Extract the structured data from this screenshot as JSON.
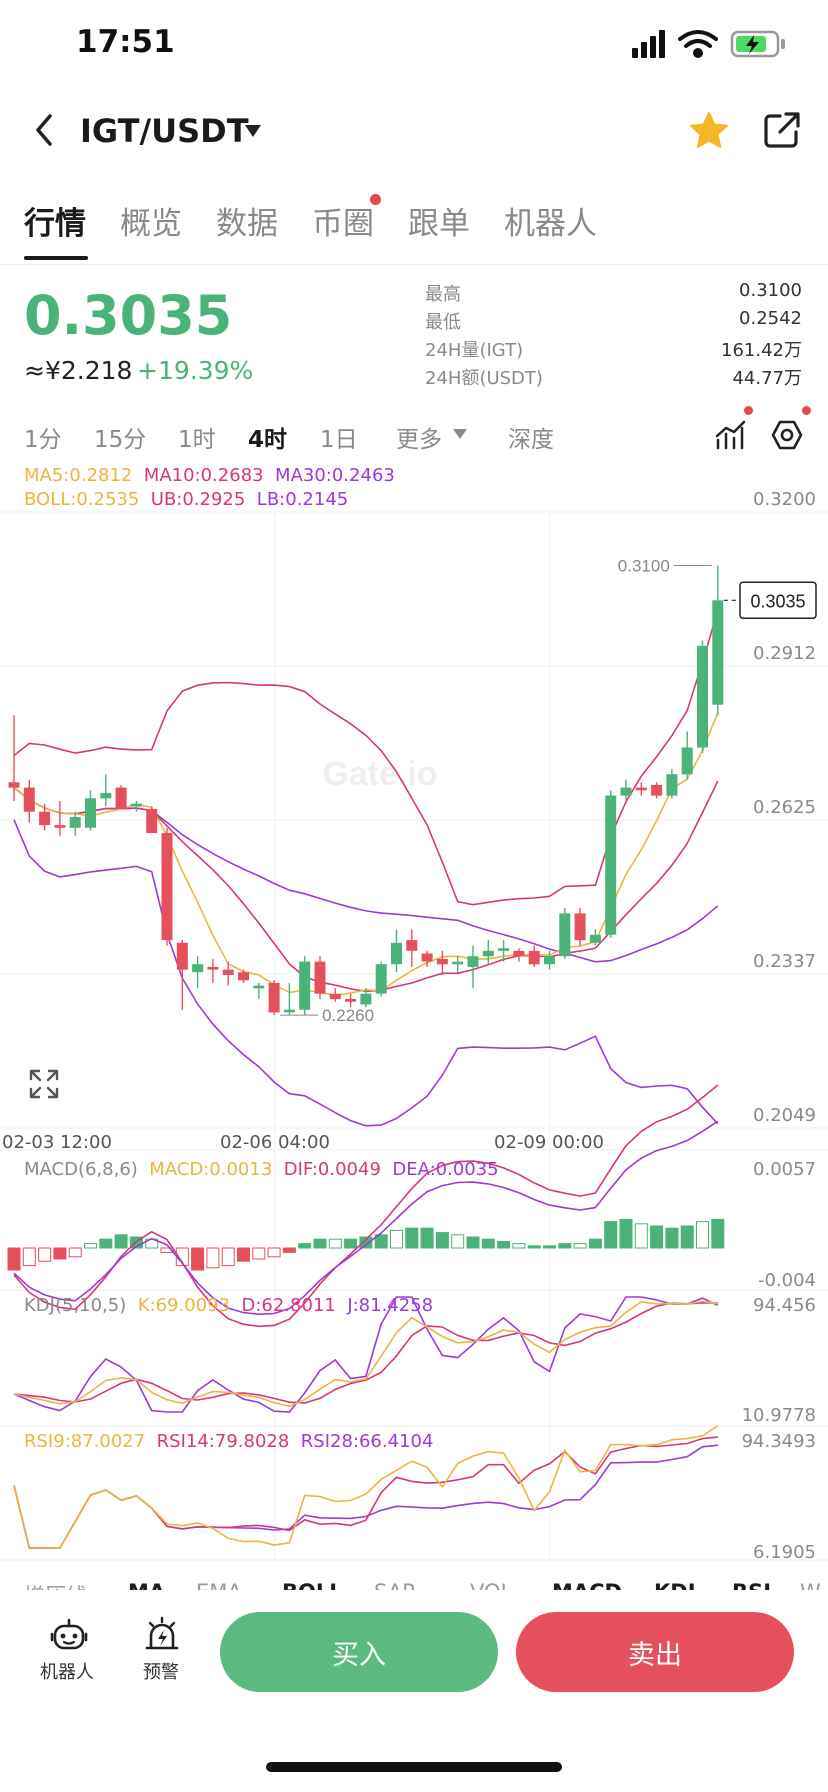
{
  "status_bar": {
    "time": "17:51"
  },
  "header": {
    "pair": "IGT/USDT"
  },
  "tabs": [
    {
      "label": "行情",
      "active": true
    },
    {
      "label": "概览"
    },
    {
      "label": "数据"
    },
    {
      "label": "币圈",
      "badge": true
    },
    {
      "label": "跟单"
    },
    {
      "label": "机器人"
    }
  ],
  "ticker": {
    "price": "0.3035",
    "cny": "≈¥2.218",
    "change": "+19.39%",
    "stats": [
      {
        "label": "最高",
        "value": "0.3100"
      },
      {
        "label": "最低",
        "value": "0.2542"
      },
      {
        "label": "24H量(IGT)",
        "value": "161.42万"
      },
      {
        "label": "24H额(USDT)",
        "value": "44.77万"
      }
    ]
  },
  "intervals": [
    "1分",
    "15分",
    "1时",
    "4时",
    "1日",
    "更多",
    "深度"
  ],
  "active_interval": "4时",
  "legends": {
    "ma5": "MA5:0.2812",
    "ma10": "MA10:0.2683",
    "ma30": "MA30:0.2463",
    "boll": "BOLL:0.2535",
    "ub": "UB:0.2925",
    "lb": "LB:0.2145",
    "macd_name": "MACD(6,8,6)",
    "macd": "MACD:0.0013",
    "dif": "DIF:0.0049",
    "dea": "DEA:0.0035",
    "kdj_name": "KDJ(5,10,5)",
    "k": "K:69.0093",
    "d": "D:62.8011",
    "j": "J:81.4258",
    "rsi9": "RSI9:87.0027",
    "rsi14": "RSI14:79.8028",
    "rsi28": "RSI28:66.4104"
  },
  "main_axis": [
    "0.3200",
    "0.2912",
    "0.2625",
    "0.2337",
    "0.2049"
  ],
  "macd_axis": [
    "0.0057",
    "-0.004"
  ],
  "kdj_axis": [
    "94.456",
    "10.9778"
  ],
  "rsi_axis": [
    "94.3493",
    "6.1905"
  ],
  "dates": [
    "02-03 12:00",
    "02-06 04:00",
    "02-09 00:00"
  ],
  "price_tag": "0.3035",
  "high_marker": "0.3100",
  "low_marker": "0.2260",
  "watermark": "Gate.io",
  "indicator_tabs": [
    "增压线",
    "MA",
    "EMA",
    "BOLL",
    "SAR",
    "VOL",
    "MACD",
    "KDJ",
    "RSI",
    "W"
  ],
  "bottom": {
    "robot_label": "机器人",
    "alert_label": "预警",
    "buy_label": "买入",
    "sell_label": "卖出"
  },
  "colors": {
    "up": "#4bb37a",
    "down": "#e4515d",
    "ma5": "#e9b640",
    "ma10": "#d6377a",
    "ma30": "#9c3ad6"
  },
  "chart_data": {
    "type": "candlestick",
    "y_range": [
      0.2049,
      0.32
    ],
    "candles": [
      {
        "o": 0.2695,
        "h": 0.282,
        "l": 0.266,
        "c": 0.2685
      },
      {
        "o": 0.2685,
        "h": 0.27,
        "l": 0.262,
        "c": 0.264
      },
      {
        "o": 0.264,
        "h": 0.2655,
        "l": 0.2605,
        "c": 0.2615
      },
      {
        "o": 0.2615,
        "h": 0.266,
        "l": 0.2595,
        "c": 0.261
      },
      {
        "o": 0.261,
        "h": 0.264,
        "l": 0.2595,
        "c": 0.263
      },
      {
        "o": 0.261,
        "h": 0.268,
        "l": 0.2605,
        "c": 0.2665
      },
      {
        "o": 0.2665,
        "h": 0.271,
        "l": 0.265,
        "c": 0.2675
      },
      {
        "o": 0.2685,
        "h": 0.269,
        "l": 0.2645,
        "c": 0.2645
      },
      {
        "o": 0.265,
        "h": 0.266,
        "l": 0.264,
        "c": 0.2655
      },
      {
        "o": 0.2645,
        "h": 0.265,
        "l": 0.26,
        "c": 0.26
      },
      {
        "o": 0.26,
        "h": 0.261,
        "l": 0.239,
        "c": 0.24
      },
      {
        "o": 0.2395,
        "h": 0.24,
        "l": 0.227,
        "c": 0.2345
      },
      {
        "o": 0.234,
        "h": 0.237,
        "l": 0.231,
        "c": 0.2355
      },
      {
        "o": 0.235,
        "h": 0.2365,
        "l": 0.232,
        "c": 0.2345
      },
      {
        "o": 0.2345,
        "h": 0.236,
        "l": 0.2315,
        "c": 0.2335
      },
      {
        "o": 0.234,
        "h": 0.2345,
        "l": 0.232,
        "c": 0.2325
      },
      {
        "o": 0.231,
        "h": 0.232,
        "l": 0.229,
        "c": 0.2315
      },
      {
        "o": 0.232,
        "h": 0.2325,
        "l": 0.226,
        "c": 0.2265
      },
      {
        "o": 0.2265,
        "h": 0.232,
        "l": 0.226,
        "c": 0.227
      },
      {
        "o": 0.227,
        "h": 0.237,
        "l": 0.226,
        "c": 0.236
      },
      {
        "o": 0.236,
        "h": 0.237,
        "l": 0.229,
        "c": 0.23
      },
      {
        "o": 0.23,
        "h": 0.231,
        "l": 0.2285,
        "c": 0.229
      },
      {
        "o": 0.229,
        "h": 0.23,
        "l": 0.2275,
        "c": 0.2285
      },
      {
        "o": 0.228,
        "h": 0.231,
        "l": 0.2275,
        "c": 0.23
      },
      {
        "o": 0.23,
        "h": 0.236,
        "l": 0.2295,
        "c": 0.2355
      },
      {
        "o": 0.2355,
        "h": 0.242,
        "l": 0.234,
        "c": 0.2395
      },
      {
        "o": 0.24,
        "h": 0.242,
        "l": 0.235,
        "c": 0.238
      },
      {
        "o": 0.2375,
        "h": 0.238,
        "l": 0.235,
        "c": 0.236
      },
      {
        "o": 0.2365,
        "h": 0.238,
        "l": 0.2335,
        "c": 0.2355
      },
      {
        "o": 0.2355,
        "h": 0.237,
        "l": 0.234,
        "c": 0.236
      },
      {
        "o": 0.235,
        "h": 0.239,
        "l": 0.231,
        "c": 0.237
      },
      {
        "o": 0.237,
        "h": 0.24,
        "l": 0.2355,
        "c": 0.238
      },
      {
        "o": 0.238,
        "h": 0.24,
        "l": 0.236,
        "c": 0.2385
      },
      {
        "o": 0.238,
        "h": 0.2385,
        "l": 0.236,
        "c": 0.237
      },
      {
        "o": 0.238,
        "h": 0.239,
        "l": 0.235,
        "c": 0.2355
      },
      {
        "o": 0.2355,
        "h": 0.238,
        "l": 0.2345,
        "c": 0.237
      },
      {
        "o": 0.237,
        "h": 0.246,
        "l": 0.2365,
        "c": 0.245
      },
      {
        "o": 0.245,
        "h": 0.246,
        "l": 0.239,
        "c": 0.24
      },
      {
        "o": 0.2395,
        "h": 0.242,
        "l": 0.239,
        "c": 0.241
      },
      {
        "o": 0.241,
        "h": 0.268,
        "l": 0.2405,
        "c": 0.267
      },
      {
        "o": 0.267,
        "h": 0.27,
        "l": 0.266,
        "c": 0.2685
      },
      {
        "o": 0.2685,
        "h": 0.2695,
        "l": 0.267,
        "c": 0.268
      },
      {
        "o": 0.269,
        "h": 0.2695,
        "l": 0.2665,
        "c": 0.267
      },
      {
        "o": 0.267,
        "h": 0.272,
        "l": 0.2665,
        "c": 0.271
      },
      {
        "o": 0.271,
        "h": 0.279,
        "l": 0.27,
        "c": 0.276
      },
      {
        "o": 0.276,
        "h": 0.296,
        "l": 0.275,
        "c": 0.295
      },
      {
        "o": 0.284,
        "h": 0.31,
        "l": 0.282,
        "c": 0.3035
      }
    ],
    "macd_hist": [
      -0.001,
      -0.0008,
      -0.0006,
      -0.0005,
      -0.0004,
      0.0002,
      0.0004,
      0.0006,
      0.0005,
      0.0004,
      -0.0002,
      -0.0008,
      -0.001,
      -0.0009,
      -0.0008,
      -0.0006,
      -0.0005,
      -0.0004,
      -0.0002,
      0.0002,
      0.0004,
      0.0004,
      0.0004,
      0.0005,
      0.0006,
      0.0008,
      0.0009,
      0.0009,
      0.0007,
      0.0006,
      0.0005,
      0.0004,
      0.0003,
      0.0002,
      0.0001,
      0.0001,
      0.0002,
      0.0002,
      0.0004,
      0.0012,
      0.0013,
      0.0011,
      0.001,
      0.0009,
      0.001,
      0.0012,
      0.0013
    ]
  }
}
